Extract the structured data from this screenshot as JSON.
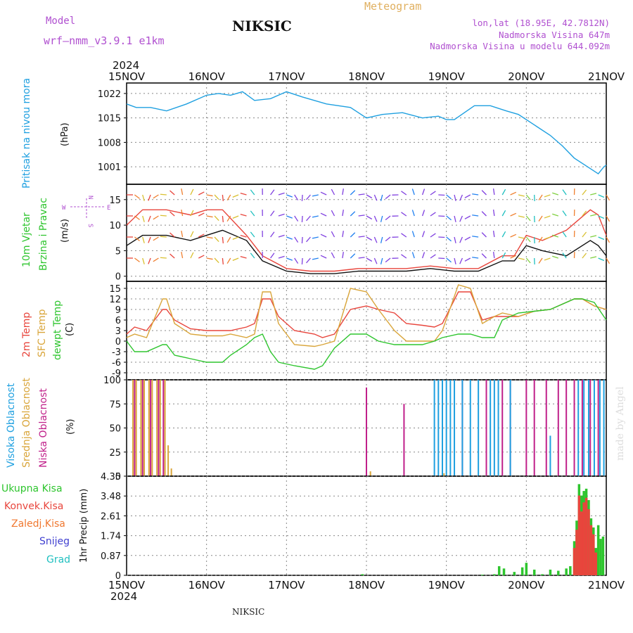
{
  "header": {
    "model_label": "Model",
    "model_name": "wrf—nmm_v3.9.1  e1km",
    "station": "NIKSIC",
    "meteogram_label": "Meteogram",
    "lonlat": "lon,lat (18.95E, 42.7812N)",
    "altitude": "Nadmorska Visina 647m",
    "model_altitude": "Nadmorska Visina u modelu 644.092m",
    "footer_station": "NIKSIC",
    "credit": "made by Angel",
    "year_top": "2024",
    "year_bottom": "2024"
  },
  "colors": {
    "pressure": "#1fa0e0",
    "temp2m": "#e8453c",
    "sfc_temp": "#d9a53a",
    "dewpt": "#2ec52e",
    "high_cloud": "#1fa0e0",
    "mid_cloud": "#d9a53a",
    "low_cloud": "#c0208a",
    "total_rain": "#2ec52e",
    "conv_rain": "#e8453c",
    "grid": "#888888",
    "purple_text": "#b050d0",
    "orange_text": "#e0b060"
  },
  "chart_data": [
    {
      "type": "line",
      "panel": "pressure",
      "ylabel": [
        "Pritisak na nivou mora",
        "(hPa)"
      ],
      "x_unit": "days since 15NOV",
      "ylim": [
        996,
        1025
      ],
      "yticks": [
        1001,
        1008,
        1015,
        1022
      ],
      "grid": true,
      "series": [
        {
          "name": "Pritisak na nivou mora",
          "x": [
            0,
            0.12,
            0.3,
            0.5,
            0.75,
            1.0,
            1.15,
            1.3,
            1.45,
            1.6,
            1.8,
            2.0,
            2.2,
            2.5,
            2.8,
            3.0,
            3.2,
            3.45,
            3.7,
            3.9,
            4.0,
            4.1,
            4.35,
            4.55,
            4.75,
            4.9,
            5.1,
            5.3,
            5.45,
            5.6,
            5.8,
            5.9,
            5.97,
            6.0
          ],
          "y": [
            1019,
            1018,
            1018,
            1017,
            1019,
            1021.5,
            1022,
            1021.5,
            1022.5,
            1020,
            1020.5,
            1022.5,
            1021,
            1019,
            1018,
            1015,
            1016,
            1016.5,
            1015,
            1015.5,
            1014.5,
            1014.5,
            1018.5,
            1018.5,
            1017,
            1016,
            1013,
            1010,
            1007,
            1003.5,
            1000.5,
            999,
            1001,
            1001.5
          ]
        }
      ]
    },
    {
      "type": "line",
      "panel": "wind",
      "ylabel": [
        "10m Vjetar",
        "Brzina i Pravac",
        "(m/s)"
      ],
      "compass": [
        "N",
        "S",
        "W",
        "E"
      ],
      "ylim": [
        -1,
        18
      ],
      "yticks": [
        0,
        5,
        10,
        15
      ],
      "grid": true,
      "series": [
        {
          "name": "speed",
          "x": [
            0,
            0.2,
            0.5,
            0.8,
            1.0,
            1.2,
            1.5,
            1.7,
            2.0,
            2.3,
            2.6,
            2.9,
            3.2,
            3.5,
            3.8,
            4.1,
            4.4,
            4.7,
            4.85,
            5.0,
            5.2,
            5.5,
            5.8,
            5.9,
            6.0
          ],
          "y": [
            6,
            8,
            8,
            7,
            8,
            9,
            7,
            3,
            1,
            0.5,
            0.5,
            1,
            1,
            1,
            1.5,
            1,
            1,
            3,
            3,
            6,
            5,
            4,
            7,
            6,
            4
          ]
        },
        {
          "name": "gust",
          "x": [
            0,
            0.2,
            0.5,
            0.8,
            1.0,
            1.2,
            1.5,
            1.7,
            2.0,
            2.3,
            2.6,
            2.9,
            3.2,
            3.5,
            3.8,
            4.1,
            4.4,
            4.7,
            4.85,
            5.0,
            5.2,
            5.5,
            5.8,
            5.9,
            6.0
          ],
          "y": [
            10,
            13,
            13,
            12,
            13,
            13,
            8,
            4,
            1.5,
            1,
            1,
            1.5,
            1.5,
            1.5,
            2,
            1.5,
            1.5,
            4,
            4,
            8,
            7,
            9,
            13,
            12,
            8
          ]
        }
      ]
    },
    {
      "type": "line",
      "panel": "temperature",
      "ylabel": [
        "2m Temp",
        "SFC Temp",
        "dewpt Temp",
        "(C)"
      ],
      "ylim": [
        -11,
        17
      ],
      "yticks": [
        -9,
        -6,
        -3,
        0,
        3,
        6,
        9,
        12,
        15
      ],
      "grid": true,
      "series": [
        {
          "name": "2m Temp",
          "x": [
            0,
            0.1,
            0.25,
            0.45,
            0.5,
            0.6,
            0.8,
            1.0,
            1.2,
            1.3,
            1.5,
            1.6,
            1.7,
            1.8,
            1.9,
            2.1,
            2.35,
            2.45,
            2.6,
            2.8,
            3.0,
            3.15,
            3.35,
            3.5,
            3.7,
            3.85,
            3.95,
            4.15,
            4.3,
            4.45,
            4.6,
            4.7,
            4.9,
            5.1,
            5.3,
            5.6,
            5.7,
            5.85,
            6.0
          ],
          "y": [
            2,
            4,
            3,
            9,
            9,
            6,
            3.5,
            3,
            3,
            3,
            4,
            5,
            12,
            12,
            7,
            3,
            2,
            1,
            2,
            9,
            10,
            9,
            8,
            5,
            4.5,
            4,
            5,
            14,
            14,
            6,
            7,
            7,
            7,
            8.5,
            9,
            12,
            12,
            10,
            9
          ]
        },
        {
          "name": "SFC Temp",
          "x": [
            0,
            0.1,
            0.25,
            0.45,
            0.5,
            0.6,
            0.8,
            1.0,
            1.2,
            1.3,
            1.5,
            1.6,
            1.7,
            1.8,
            1.9,
            2.1,
            2.35,
            2.45,
            2.6,
            2.8,
            3.0,
            3.15,
            3.35,
            3.5,
            3.7,
            3.85,
            3.95,
            4.15,
            4.3,
            4.45,
            4.6,
            4.7,
            4.9,
            5.1,
            5.3,
            5.6,
            5.7,
            5.85,
            6.0
          ],
          "y": [
            1,
            2,
            1,
            12,
            12,
            5,
            2,
            1.5,
            1.5,
            2,
            1,
            2,
            14,
            14,
            5,
            -1,
            -1.5,
            -1,
            0,
            15,
            14,
            9,
            3,
            0,
            0,
            0,
            3,
            16,
            15,
            5,
            7,
            8,
            7,
            8.5,
            9,
            12,
            12,
            10,
            9
          ]
        },
        {
          "name": "dewpt Temp",
          "x": [
            0,
            0.1,
            0.25,
            0.45,
            0.5,
            0.6,
            0.8,
            1.0,
            1.2,
            1.3,
            1.5,
            1.6,
            1.7,
            1.8,
            1.9,
            2.1,
            2.35,
            2.45,
            2.6,
            2.8,
            3.0,
            3.15,
            3.35,
            3.5,
            3.7,
            3.85,
            3.95,
            4.15,
            4.3,
            4.45,
            4.6,
            4.7,
            4.9,
            5.1,
            5.3,
            5.6,
            5.7,
            5.85,
            6.0
          ],
          "y": [
            0,
            -3,
            -3,
            -1,
            -1,
            -4,
            -5,
            -6,
            -6,
            -4,
            -1,
            1,
            2,
            -3,
            -6,
            -7,
            -8,
            -7,
            -2,
            2,
            2,
            0,
            -1,
            -1,
            -1,
            0,
            1,
            2,
            2,
            1,
            1,
            6,
            8,
            8.5,
            9,
            12,
            12,
            11,
            6
          ]
        }
      ]
    },
    {
      "type": "bar",
      "panel": "cloud",
      "ylabel": [
        "Visoka Oblacnost",
        "Srednja Oblacnost",
        "Niska Oblacnost",
        "(%)"
      ],
      "ylim": [
        0,
        100
      ],
      "yticks": [
        0,
        25,
        50,
        75,
        100
      ],
      "grid": true,
      "series": [
        {
          "name": "Srednja Oblacnost",
          "x": [
            0.08,
            0.12,
            0.18,
            0.22,
            0.28,
            0.32,
            0.38,
            0.42,
            0.48,
            0.52,
            0.56,
            3.0,
            3.05,
            3.97
          ],
          "values": [
            100,
            100,
            100,
            100,
            100,
            100,
            100,
            100,
            100,
            32,
            8,
            22,
            5,
            3
          ]
        },
        {
          "name": "Niska Oblacnost",
          "x": [
            0.1,
            0.2,
            0.3,
            0.4,
            0.46,
            3.0,
            3.47,
            4.2,
            4.5,
            4.7,
            4.8,
            5.0,
            5.1,
            5.25,
            5.4,
            5.5,
            5.6,
            5.7,
            5.8,
            5.9
          ],
          "values": [
            100,
            100,
            100,
            100,
            100,
            92,
            75,
            100,
            100,
            100,
            100,
            100,
            100,
            100,
            100,
            100,
            100,
            100,
            100,
            100
          ]
        },
        {
          "name": "Visoka Oblacnost",
          "x": [
            3.85,
            3.9,
            3.95,
            4.0,
            4.05,
            4.1,
            4.2,
            4.3,
            4.4,
            4.55,
            4.6,
            4.65,
            4.8,
            5.3,
            5.65,
            5.72,
            5.78,
            5.85,
            5.92,
            5.97
          ],
          "values": [
            100,
            100,
            100,
            100,
            100,
            100,
            100,
            100,
            100,
            100,
            100,
            100,
            100,
            42,
            100,
            100,
            100,
            100,
            100,
            100
          ]
        }
      ]
    },
    {
      "type": "bar",
      "panel": "precipitation",
      "ylabel": [
        "1hr Precip (mm)"
      ],
      "legend": [
        "Ukupna Kisa",
        "Konvek.Kisa",
        "Zaledj.Kisa",
        "Snijeg",
        "Grad"
      ],
      "ylim": [
        0,
        4.35
      ],
      "yticks": [
        0,
        0.87,
        1.74,
        2.61,
        3.48,
        4.35
      ],
      "grid": true,
      "x_ticks": [
        "15NOV",
        "16NOV",
        "17NOV",
        "18NOV",
        "19NOV",
        "20NOV",
        "21NOV"
      ],
      "series": [
        {
          "name": "Ukupna Kisa",
          "x": [
            2.95,
            4.45,
            4.6,
            4.66,
            4.72,
            4.85,
            4.95,
            5.0,
            5.1,
            5.2,
            5.3,
            5.4,
            5.5,
            5.55,
            5.6,
            5.63,
            5.66,
            5.69,
            5.72,
            5.75,
            5.78,
            5.81,
            5.84,
            5.87,
            5.9,
            5.93,
            5.96
          ],
          "values": [
            0.05,
            0.03,
            0.05,
            0.4,
            0.3,
            0.15,
            0.35,
            0.55,
            0.25,
            0.05,
            0.25,
            0.2,
            0.3,
            0.4,
            1.5,
            2.4,
            4.0,
            3.5,
            3.7,
            3.8,
            3.3,
            2.5,
            2.1,
            1.2,
            2.2,
            1.6,
            1.7
          ]
        },
        {
          "name": "Konvek.Kisa",
          "x": [
            5.6,
            5.63,
            5.66,
            5.69,
            5.72,
            5.75,
            5.78,
            5.81,
            5.84,
            5.87
          ],
          "values": [
            1.2,
            2.0,
            3.5,
            2.8,
            3.2,
            3.4,
            2.9,
            2.2,
            1.8,
            1.0
          ]
        }
      ]
    }
  ]
}
